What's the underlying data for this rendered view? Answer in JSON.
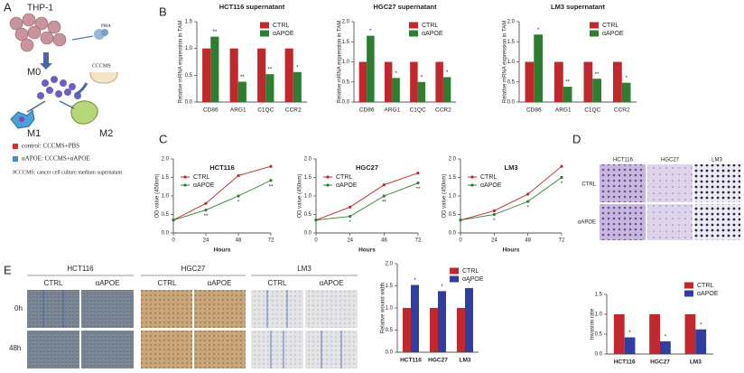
{
  "panel_labels": [
    "A",
    "B",
    "C",
    "D",
    "E"
  ],
  "panel_a": {
    "cell_line": "THP-1",
    "inducer": "PMA",
    "m0": "M0",
    "medium": "CCCMS",
    "m1": "M1",
    "m2": "M2",
    "legend": [
      "control: CCCMS+PBS",
      "αAPOE: CCCMS+αAPOE"
    ],
    "note": "#CCCMS: cancer cell culture medium supernatant"
  },
  "panel_d": {
    "columns": [
      "HCT116",
      "HGC27",
      "LM3"
    ],
    "rows": [
      "CTRL",
      "αAPOE"
    ]
  },
  "panel_e_images": {
    "columns": [
      "HCT116",
      "HGC27",
      "LM3"
    ],
    "conditions": [
      "CTRL",
      "αAPOE"
    ],
    "rows": [
      "0h",
      "48h"
    ]
  },
  "chart_data": [
    {
      "type": "bar",
      "title": "HCT116 supernatant",
      "ylabel": "Relative mRNA expression in TAM",
      "categories": [
        "CD86",
        "ARG1",
        "C1QC",
        "CCR2"
      ],
      "series": [
        {
          "name": "CTRL",
          "color": "#c0282d",
          "values": [
            1,
            1,
            1,
            1
          ]
        },
        {
          "name": "αAPOE",
          "color": "#2e7d32",
          "values": [
            1.22,
            0.38,
            0.52,
            0.56
          ],
          "annotations": [
            "**",
            "**",
            "**",
            "*"
          ]
        }
      ],
      "ylim": [
        0,
        1.5
      ],
      "yticks": [
        {
          "value": 0,
          "label": "0.0"
        },
        0.5,
        {
          "value": 1,
          "label": "1.0"
        },
        1.5
      ],
      "legend": "upper right"
    },
    {
      "type": "bar",
      "title": "HGC27 supernatant",
      "ylabel": "Relative mRNA expression in TAM",
      "categories": [
        "CD86",
        "ARG1",
        "C1QC",
        "CCR2"
      ],
      "series": [
        {
          "name": "CTRL",
          "color": "#c0282d",
          "values": [
            1,
            1,
            1,
            1
          ]
        },
        {
          "name": "αAPOE",
          "color": "#2e7d32",
          "values": [
            1.65,
            0.6,
            0.5,
            0.62
          ],
          "annotations": [
            "*",
            "*",
            "*",
            "*"
          ]
        }
      ],
      "ylim": [
        0,
        2
      ],
      "yticks": [
        {
          "value": 0,
          "label": "0.0"
        },
        0.5,
        {
          "value": 1,
          "label": "1.0"
        },
        1.5,
        {
          "value": 2,
          "label": "2.0"
        }
      ],
      "legend": "upper right"
    },
    {
      "type": "bar",
      "title": "LM3 supernatant",
      "ylabel": "Relative mRNA expression in TAM",
      "categories": [
        "CD86",
        "ARG1",
        "C1QC",
        "CCR2"
      ],
      "series": [
        {
          "name": "CTRL",
          "color": "#c0282d",
          "values": [
            1,
            1,
            1,
            1
          ]
        },
        {
          "name": "αAPOE",
          "color": "#2e7d32",
          "values": [
            1.68,
            0.38,
            0.58,
            0.48
          ],
          "annotations": [
            "*",
            "**",
            "**",
            "*"
          ]
        }
      ],
      "ylim": [
        0,
        2
      ],
      "yticks": [
        {
          "value": 0,
          "label": "0.0"
        },
        0.5,
        {
          "value": 1,
          "label": "1.0"
        },
        1.5,
        {
          "value": 2,
          "label": "2.0"
        }
      ],
      "legend": "upper right"
    },
    {
      "type": "line",
      "title": "HCT116",
      "xlabel": "Hours",
      "ylabel": "OD value (450nm)",
      "x": [
        0,
        24,
        48,
        72
      ],
      "series": [
        {
          "name": "CTRL",
          "color": "#c0282d",
          "values": [
            0.35,
            0.8,
            1.55,
            1.8
          ]
        },
        {
          "name": "αAPOE",
          "color": "#2e7d32",
          "values": [
            0.35,
            0.62,
            1.0,
            1.42
          ],
          "annotations": [
            null,
            "**",
            "*",
            "**"
          ]
        }
      ],
      "xlim": [
        0,
        72
      ],
      "xticks": [
        0,
        24,
        48,
        72
      ],
      "ylim": [
        0,
        2
      ],
      "yticks": [
        {
          "value": 0,
          "label": "0.0"
        },
        0.5,
        {
          "value": 1,
          "label": "1.0"
        },
        1.5,
        {
          "value": 2,
          "label": "2.0"
        }
      ],
      "legend": "upper left"
    },
    {
      "type": "line",
      "title": "HGC27",
      "xlabel": "Hours",
      "ylabel": "OD value (450nm)",
      "x": [
        0,
        24,
        48,
        72
      ],
      "series": [
        {
          "name": "CTRL",
          "color": "#c0282d",
          "values": [
            0.35,
            0.7,
            1.3,
            1.62
          ]
        },
        {
          "name": "αAPOE",
          "color": "#2e7d32",
          "values": [
            0.35,
            0.45,
            1.0,
            1.35
          ],
          "annotations": [
            null,
            "*",
            "**",
            "**"
          ]
        }
      ],
      "xlim": [
        0,
        72
      ],
      "xticks": [
        0,
        24,
        48,
        72
      ],
      "ylim": [
        0,
        2
      ],
      "yticks": [
        {
          "value": 0,
          "label": "0.0"
        },
        0.5,
        {
          "value": 1,
          "label": "1.0"
        },
        1.5,
        {
          "value": 2,
          "label": "2.0"
        }
      ],
      "legend": "upper left"
    },
    {
      "type": "line",
      "title": "LM3",
      "xlabel": "Hours",
      "ylabel": "OD value (450nm)",
      "x": [
        0,
        24,
        48,
        72
      ],
      "series": [
        {
          "name": "CTRL",
          "color": "#c0282d",
          "values": [
            0.35,
            0.6,
            1.05,
            1.8
          ]
        },
        {
          "name": "αAPOE",
          "color": "#2e7d32",
          "values": [
            0.35,
            0.5,
            0.85,
            1.5
          ],
          "annotations": [
            null,
            "*",
            "*",
            "*"
          ]
        }
      ],
      "xlim": [
        0,
        72
      ],
      "xticks": [
        0,
        24,
        48,
        72
      ],
      "ylim": [
        0,
        2
      ],
      "yticks": [
        {
          "value": 0,
          "label": "0.0"
        },
        0.5,
        {
          "value": 1,
          "label": "1.0"
        },
        1.5,
        {
          "value": 2,
          "label": "2.0"
        }
      ],
      "legend": "upper left"
    },
    {
      "type": "bar",
      "ylabel": "Relative wound width",
      "categories": [
        "HCT116",
        "HGC27",
        "LM3"
      ],
      "series": [
        {
          "name": "CTRL",
          "color": "#c0282d",
          "values": [
            1,
            1,
            1
          ]
        },
        {
          "name": "αAPOE",
          "color": "#2f3ea0",
          "values": [
            1.52,
            1.38,
            1.45
          ],
          "annotations": [
            "*",
            "*",
            "*"
          ]
        }
      ],
      "ylim": [
        0,
        2
      ],
      "yticks": [
        {
          "value": 0,
          "label": "0.0"
        },
        0.5,
        {
          "value": 1,
          "label": "1.0"
        },
        1.5,
        {
          "value": 2,
          "label": "2.0"
        }
      ],
      "legend": "upper right"
    },
    {
      "type": "bar",
      "ylabel": "Invasion rate",
      "categories": [
        "HCT116",
        "HGC27",
        "LM3"
      ],
      "series": [
        {
          "name": "CTRL",
          "color": "#c0282d",
          "values": [
            1,
            1,
            1
          ]
        },
        {
          "name": "αAPOE",
          "color": "#2f3ea0",
          "values": [
            0.42,
            0.32,
            0.62
          ],
          "annotations": [
            "*",
            "*",
            "*"
          ]
        }
      ],
      "ylim": [
        0,
        1.5
      ],
      "yticks": [
        {
          "value": 0,
          "label": "0.0"
        },
        0.5,
        {
          "value": 1,
          "label": "1.0"
        },
        1.5
      ],
      "legend": "upper right"
    }
  ]
}
